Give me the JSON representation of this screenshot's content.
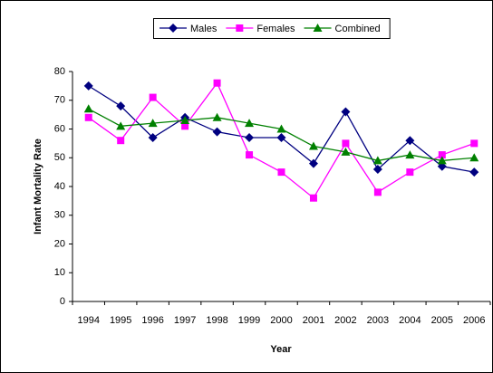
{
  "chart_data": {
    "type": "line",
    "x_label": "Year",
    "y_label": "Infant Mortality Rate",
    "categories": [
      "1994",
      "1995",
      "1996",
      "1997",
      "1998",
      "1999",
      "2000",
      "2001",
      "2002",
      "2003",
      "2004",
      "2005",
      "2006"
    ],
    "series": [
      {
        "name": "Males",
        "color": "#000080",
        "marker": "diamond",
        "values": [
          75,
          68,
          57,
          64,
          59,
          57,
          57,
          48,
          66,
          46,
          56,
          47,
          45
        ]
      },
      {
        "name": "Females",
        "color": "#ff00ff",
        "marker": "square",
        "values": [
          64,
          56,
          71,
          61,
          76,
          51,
          45,
          36,
          55,
          38,
          45,
          51,
          55
        ]
      },
      {
        "name": "Combined",
        "color": "#008000",
        "marker": "triangle",
        "values": [
          67,
          61,
          62,
          63,
          64,
          62,
          60,
          54,
          52,
          49,
          51,
          49,
          50
        ]
      }
    ],
    "ylim": [
      0,
      80
    ],
    "yticks": [
      0,
      10,
      20,
      30,
      40,
      50,
      60,
      70,
      80
    ],
    "legend": "top",
    "grid": false
  }
}
